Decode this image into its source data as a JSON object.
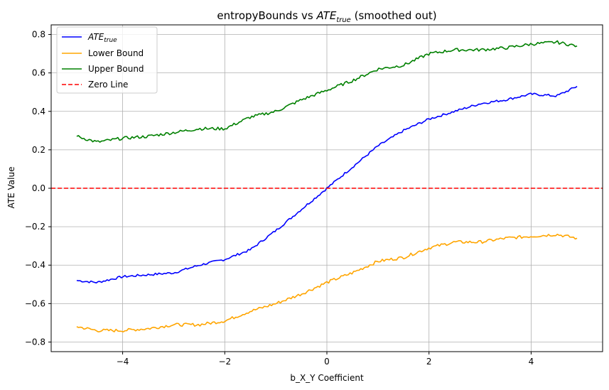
{
  "chart_data": {
    "type": "line",
    "title": "entropyBounds vs ATE_true (smoothed out)",
    "title_parts": {
      "prefix": "entropyBounds vs ",
      "math_base": "ATE",
      "math_sub": "true",
      "suffix": " (smoothed out)"
    },
    "xlabel": "b_X_Y Coefficient",
    "ylabel": "ATE Value",
    "xlim": [
      -5.4,
      5.4
    ],
    "ylim": [
      -0.85,
      0.85
    ],
    "xticks": [
      -4,
      -2,
      0,
      2,
      4
    ],
    "xtick_labels": [
      "−4",
      "−2",
      "0",
      "2",
      "4"
    ],
    "yticks": [
      -0.8,
      -0.6,
      -0.4,
      -0.2,
      0.0,
      0.2,
      0.4,
      0.6,
      0.8
    ],
    "ytick_labels": [
      "−0.8",
      "−0.6",
      "−0.4",
      "−0.2",
      "0.0",
      "0.2",
      "0.4",
      "0.6",
      "0.8"
    ],
    "grid": true,
    "legend_position": "top-left",
    "x": [
      -4.9,
      -4.5,
      -4.0,
      -3.5,
      -3.0,
      -2.5,
      -2.0,
      -1.5,
      -1.0,
      -0.5,
      0.0,
      0.5,
      1.0,
      1.5,
      2.0,
      2.5,
      3.0,
      3.5,
      4.0,
      4.5,
      4.9
    ],
    "series": [
      {
        "name": "ATE_true",
        "legend_base": "ATE",
        "legend_sub": "true",
        "color": "#0000ff",
        "dash": "solid",
        "values": [
          -0.48,
          -0.49,
          -0.46,
          -0.45,
          -0.44,
          -0.4,
          -0.37,
          -0.32,
          -0.22,
          -0.11,
          0.0,
          0.11,
          0.22,
          0.3,
          0.36,
          0.4,
          0.44,
          0.46,
          0.49,
          0.48,
          0.53
        ]
      },
      {
        "name": "Lower Bound",
        "color": "#ffa500",
        "dash": "solid",
        "values": [
          -0.72,
          -0.74,
          -0.74,
          -0.73,
          -0.71,
          -0.71,
          -0.69,
          -0.64,
          -0.6,
          -0.55,
          -0.49,
          -0.44,
          -0.38,
          -0.36,
          -0.31,
          -0.28,
          -0.28,
          -0.26,
          -0.25,
          -0.24,
          -0.26
        ]
      },
      {
        "name": "Upper Bound",
        "color": "#008000",
        "dash": "solid",
        "values": [
          0.27,
          0.24,
          0.26,
          0.27,
          0.29,
          0.31,
          0.31,
          0.37,
          0.4,
          0.46,
          0.51,
          0.56,
          0.62,
          0.64,
          0.7,
          0.72,
          0.72,
          0.73,
          0.75,
          0.76,
          0.74
        ]
      },
      {
        "name": "Zero Line",
        "color": "#ff0000",
        "dash": "dashed",
        "values": [
          0,
          0,
          0,
          0,
          0,
          0,
          0,
          0,
          0,
          0,
          0,
          0,
          0,
          0,
          0,
          0,
          0,
          0,
          0,
          0,
          0
        ]
      }
    ]
  }
}
